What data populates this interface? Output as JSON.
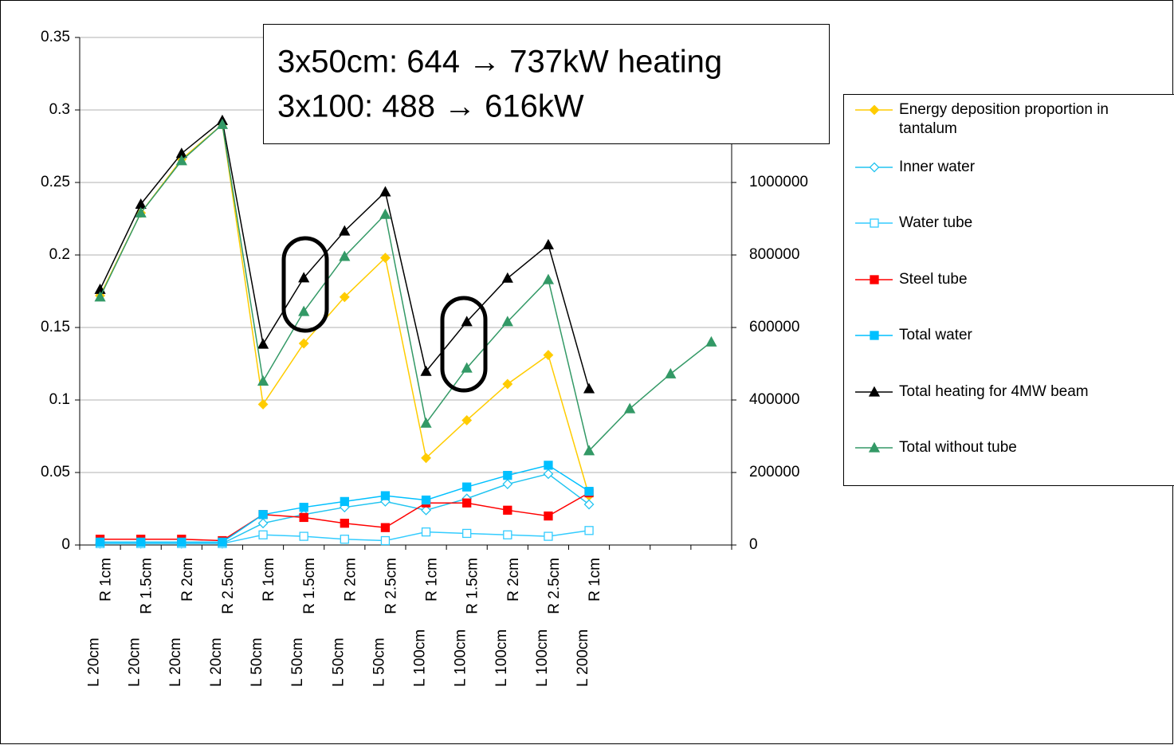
{
  "chart_data": {
    "type": "line",
    "annotation": [
      "3x50cm: 644 → 737kW heating",
      "3x100: 488 → 616kW"
    ],
    "categories": [
      [
        "L 20cm",
        "R 1cm"
      ],
      [
        "L 20cm",
        "R 1.5cm"
      ],
      [
        "L 20cm",
        "R 2cm"
      ],
      [
        "L 20cm",
        "R 2.5cm"
      ],
      [
        "L 50cm",
        "R 1cm"
      ],
      [
        "L 50cm",
        "R 1.5cm"
      ],
      [
        "L 50cm",
        "R 2cm"
      ],
      [
        "L 50cm",
        "R 2.5cm"
      ],
      [
        "L 100cm",
        "R 1cm"
      ],
      [
        "L 100cm",
        "R 1.5cm"
      ],
      [
        "L 100cm",
        "R 2cm"
      ],
      [
        "L 100cm",
        "R 2.5cm"
      ],
      [
        "L 200cm",
        "R 1cm"
      ],
      null,
      null,
      null
    ],
    "series": [
      {
        "name": "Energy deposition proportion in tantalum",
        "color": "#ffcc00",
        "marker": "diamond",
        "filled": true,
        "values": [
          0.172,
          0.229,
          0.266,
          0.29,
          0.097,
          0.139,
          0.171,
          0.198,
          0.06,
          0.086,
          0.111,
          0.131,
          0.034,
          null,
          null,
          null
        ]
      },
      {
        "name": "Inner water",
        "color": "#22c4f0",
        "marker": "diamond",
        "filled": false,
        "values": [
          0.001,
          0.001,
          0.001,
          0.001,
          0.015,
          0.021,
          0.026,
          0.03,
          0.024,
          0.032,
          0.042,
          0.049,
          0.028,
          null,
          null,
          null
        ]
      },
      {
        "name": "Water tube",
        "color": "#33ccff",
        "marker": "square",
        "filled": false,
        "values": [
          0.001,
          0.001,
          0.001,
          0.001,
          0.007,
          0.006,
          0.004,
          0.003,
          0.009,
          0.008,
          0.007,
          0.006,
          0.01,
          null,
          null,
          null
        ]
      },
      {
        "name": "Steel tube",
        "color": "#ff0000",
        "marker": "square",
        "filled": true,
        "values": [
          0.004,
          0.004,
          0.004,
          0.003,
          0.021,
          0.019,
          0.015,
          0.012,
          0.029,
          0.029,
          0.024,
          0.02,
          0.036,
          null,
          null,
          null
        ]
      },
      {
        "name": "Total water",
        "color": "#00c0ff",
        "marker": "square",
        "filled": true,
        "values": [
          0.002,
          0.002,
          0.002,
          0.002,
          0.021,
          0.026,
          0.03,
          0.034,
          0.031,
          0.04,
          0.048,
          0.055,
          0.037,
          null,
          null,
          null
        ]
      },
      {
        "name": "Total heating for 4MW beam",
        "color": "#000000",
        "marker": "triangle",
        "filled": true,
        "axis": "y2",
        "values": [
          705000,
          940000,
          1080000,
          1171000,
          554000,
          737000,
          866000,
          974000,
          479000,
          616000,
          736000,
          828000,
          431000,
          null,
          null,
          null
        ]
      },
      {
        "name": "Total without tube",
        "color": "#339966",
        "marker": "triangle",
        "filled": true,
        "axis": "y2",
        "values": [
          684000,
          916000,
          1060000,
          1160000,
          452000,
          644000,
          796000,
          912000,
          336000,
          488000,
          616000,
          732000,
          260000,
          376000,
          472000,
          560000
        ]
      }
    ],
    "ylim": [
      0,
      0.35
    ],
    "yticks": [
      0,
      0.05,
      0.1,
      0.15,
      0.2,
      0.25,
      0.3,
      0.35
    ],
    "y2lim": [
      0,
      1400000
    ],
    "y2ticks": [
      0,
      200000,
      400000,
      600000,
      800000,
      1000000
    ],
    "grid": true,
    "legend": "right"
  }
}
